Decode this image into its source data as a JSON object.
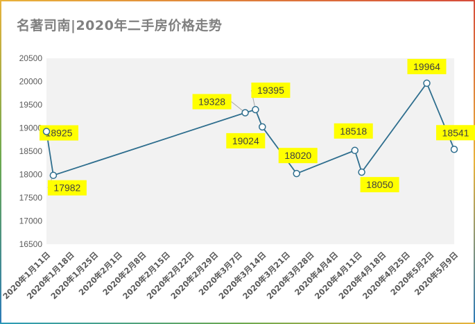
{
  "title": "名著司南|2020年二手房价格走势",
  "colors": {
    "line": "#2e6e8e",
    "label_bg": "#ffff00",
    "plot_bg": "#f2f2f2",
    "title": "#808080"
  },
  "chart_data": {
    "type": "line",
    "title": "名著司南|2020年二手房价格走势",
    "xlabel": "",
    "ylabel": "",
    "ylim": [
      16500,
      20500
    ],
    "yticks": [
      16500,
      17000,
      17500,
      18000,
      18500,
      19000,
      19500,
      20000,
      20500
    ],
    "categories": [
      "2020年1月11日",
      "2020年1月18日",
      "2020年1月25日",
      "2020年2月1日",
      "2020年2月8日",
      "2020年2月15日",
      "2020年2月22日",
      "2020年2月29日",
      "2020年3月7日",
      "2020年3月14日",
      "2020年3月21日",
      "2020年3月28日",
      "2020年4月4日",
      "2020年4月11日",
      "2020年4月18日",
      "2020年4月25日",
      "2020年5月2日",
      "2020年5月9日"
    ],
    "grid": false,
    "legend": "none",
    "series": [
      {
        "points": [
          {
            "x": "2020年1月11日",
            "y": 18925,
            "label": "18925"
          },
          {
            "x": "2020年1月13日",
            "y": 17982,
            "label": "17982"
          },
          {
            "x": "2020年3月9日",
            "y": 19328,
            "label": "19328"
          },
          {
            "x": "2020年3月12日",
            "y": 19395,
            "label": "19395"
          },
          {
            "x": "2020年3月14日",
            "y": 19024,
            "label": "19024"
          },
          {
            "x": "2020年3月24日",
            "y": 18020,
            "label": "18020"
          },
          {
            "x": "2020年4月10日",
            "y": 18518,
            "label": "18518"
          },
          {
            "x": "2020年4月12日",
            "y": 18050,
            "label": "18050"
          },
          {
            "x": "2020年5月1日",
            "y": 19964,
            "label": "19964"
          },
          {
            "x": "2020年5月9日",
            "y": 18541,
            "label": "18541"
          }
        ]
      }
    ]
  }
}
